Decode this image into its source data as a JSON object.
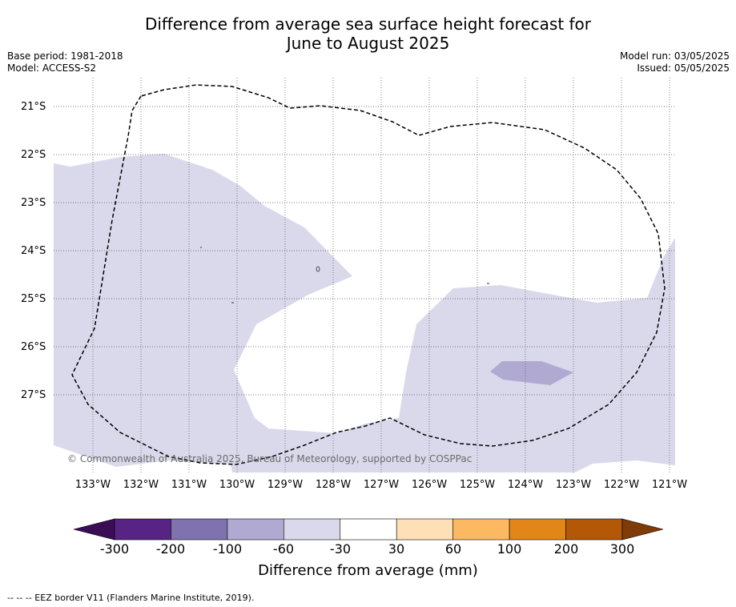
{
  "title": {
    "line1": "Difference from average sea surface height forecast for",
    "line2": "June to August 2025"
  },
  "meta": {
    "base_period": "Base period: 1981-2018",
    "model": "Model: ACCESS-S2",
    "model_run": "Model run: 03/05/2025",
    "issued": "Issued: 05/05/2025"
  },
  "map": {
    "latitude_labels": [
      "21°S",
      "22°S",
      "23°S",
      "24°S",
      "25°S",
      "26°S",
      "27°S"
    ],
    "longitude_labels": [
      "133°W",
      "132°W",
      "131°W",
      "130°W",
      "129°W",
      "128°W",
      "127°W",
      "126°W",
      "125°W",
      "124°W",
      "123°W",
      "122°W",
      "121°W"
    ],
    "copyright": "© Commonwealth of Australia 2025, Bureau of Meteorology, supported by COSPPac",
    "region_colors": {
      "category_-60_to_-30": "#d9d9eb",
      "category_-100_to_-60": "#b0aad3"
    }
  },
  "colorbar": {
    "tick_labels": [
      "-300",
      "-200",
      "-100",
      "-60",
      "-30",
      "30",
      "60",
      "100",
      "200",
      "300"
    ],
    "segment_colors": [
      "#572384",
      "#7f72ae",
      "#b0aad3",
      "#d9d9eb",
      "#ffffff",
      "#fee0b6",
      "#fcb962",
      "#e2861a",
      "#b35806"
    ],
    "under_color": "#3c0d57",
    "over_color": "#7f3b08",
    "title": "Difference from average (mm)"
  },
  "footer": {
    "eez_note": "--  --  -- EEZ border V11 (Flanders Marine Institute, 2019)."
  }
}
